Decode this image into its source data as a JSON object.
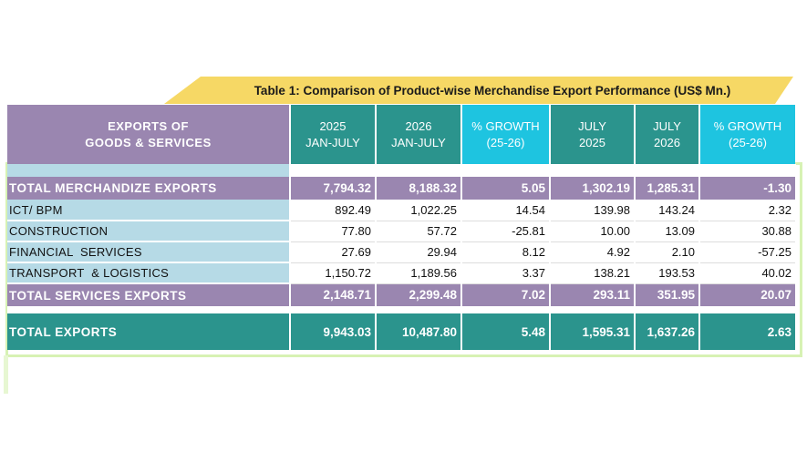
{
  "title": "Table 1: Comparison of Product-wise Merchandise Export Performance (US$ Mn.)",
  "headers": {
    "label_line1": "EXPORTS OF",
    "label_line2": "GOODS & SERVICES",
    "cols": [
      {
        "line1": "2025",
        "line2": "JAN-JULY"
      },
      {
        "line1": "2026",
        "line2": "JAN-JULY"
      },
      {
        "line1": "% GROWTH",
        "line2": "(25-26)"
      },
      {
        "line1": "JULY",
        "line2": "2025"
      },
      {
        "line1": "JULY",
        "line2": "2026"
      },
      {
        "line1": "% GROWTH",
        "line2": "(25-26)"
      }
    ]
  },
  "rows": [
    {
      "label": "TOTAL MERCHANDIZE EXPORTS",
      "values": [
        "7,794.32",
        "8,188.32",
        "5.05",
        "1,302.19",
        "1,285.31",
        "-1.30"
      ]
    },
    {
      "label": "ICT/ BPM",
      "values": [
        "892.49",
        "1,022.25",
        "14.54",
        "139.98",
        "143.24",
        "2.32"
      ]
    },
    {
      "label": "CONSTRUCTION",
      "values": [
        "77.80",
        "57.72",
        "-25.81",
        "10.00",
        "13.09",
        "30.88"
      ]
    },
    {
      "label": "FINANCIAL  SERVICES",
      "values": [
        "27.69",
        "29.94",
        "8.12",
        "4.92",
        "2.10",
        "-57.25"
      ]
    },
    {
      "label": "TRANSPORT  & LOGISTICS",
      "values": [
        "1,150.72",
        "1,189.56",
        "3.37",
        "138.21",
        "193.53",
        "40.02"
      ]
    },
    {
      "label": "TOTAL SERVICES EXPORTS",
      "values": [
        "2,148.71",
        "2,299.48",
        "7.02",
        "293.11",
        "351.95",
        "20.07"
      ]
    },
    {
      "label": "TOTAL EXPORTS",
      "values": [
        "9,943.03",
        "10,487.80",
        "5.48",
        "1,595.31",
        "1,637.26",
        "2.63"
      ]
    }
  ],
  "colors": {
    "banner": "#f6d865",
    "header_purple": "#9a86b0",
    "header_teal": "#2b948d",
    "header_cyan": "#1ec4e0",
    "label_blue": "#b6dae6",
    "frame_green": "#d7f2b4"
  }
}
